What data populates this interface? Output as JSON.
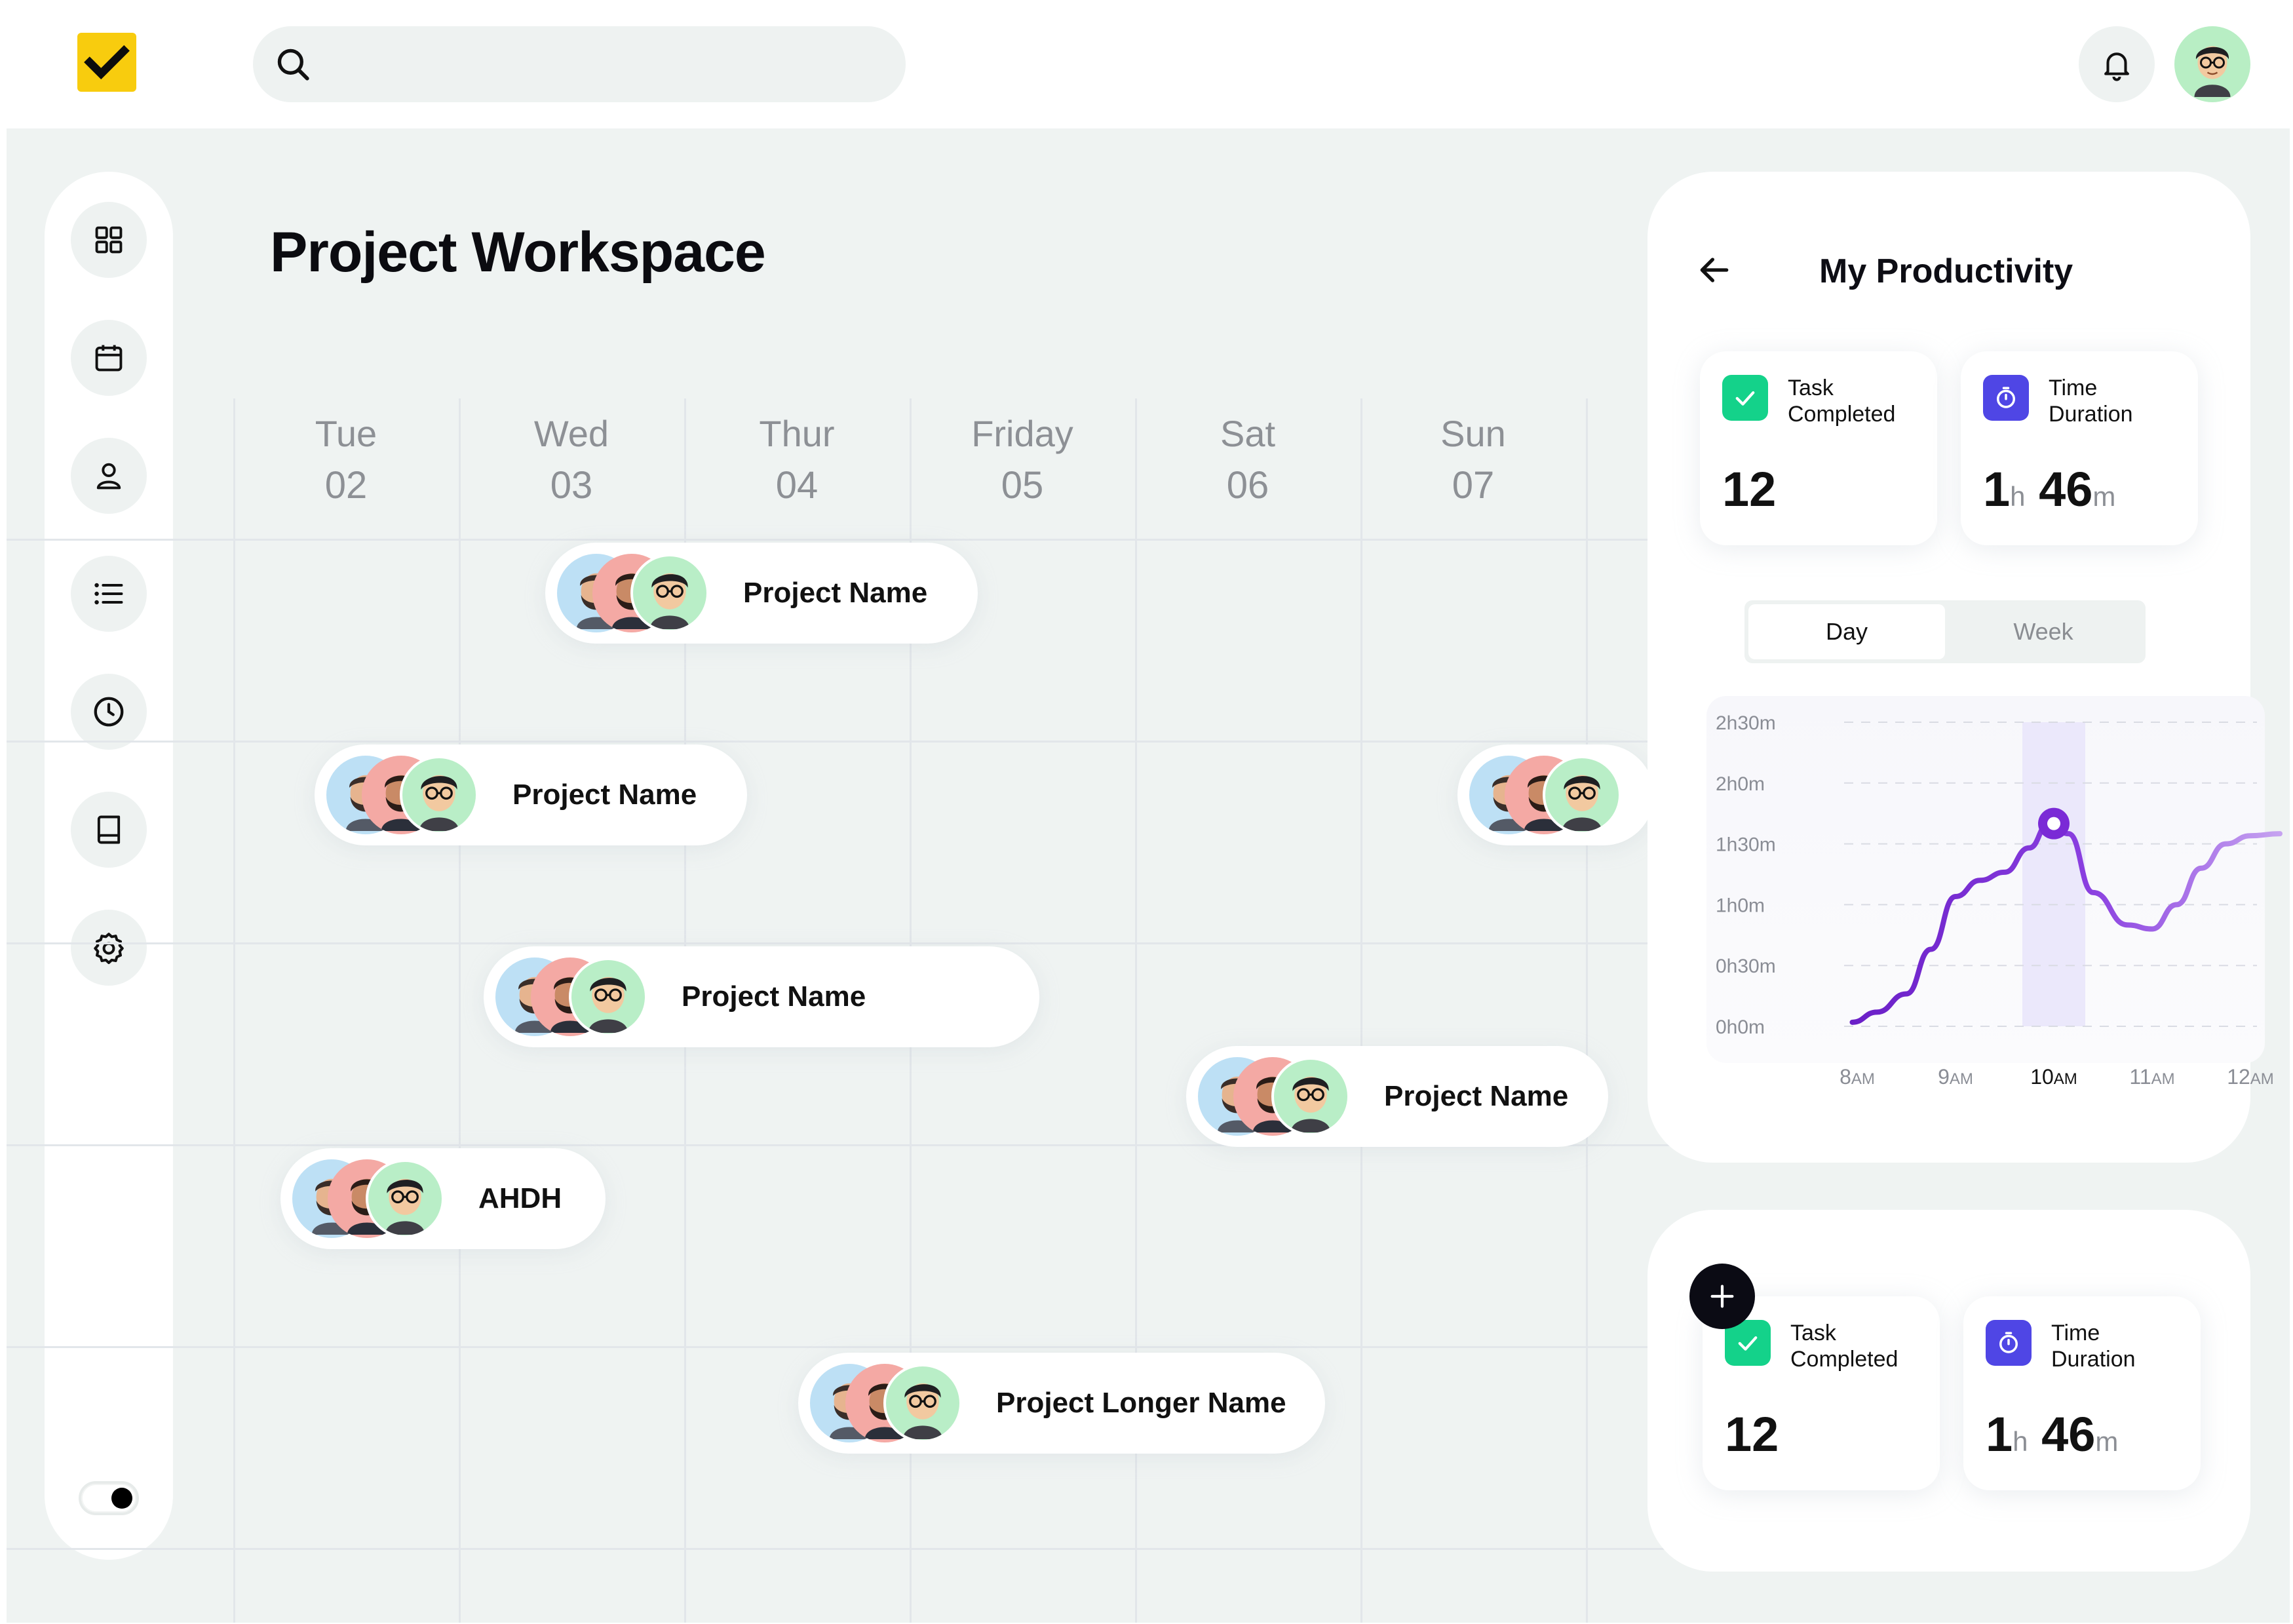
{
  "search": {
    "placeholder": "",
    "value": ""
  },
  "workspace": {
    "title": "Project Workspace"
  },
  "days": [
    {
      "name": "Tue",
      "date": "02"
    },
    {
      "name": "Wed",
      "date": "03"
    },
    {
      "name": "Thur",
      "date": "04"
    },
    {
      "name": "Friday",
      "date": "05"
    },
    {
      "name": "Sat",
      "date": "06"
    },
    {
      "name": "Sun",
      "date": "07"
    }
  ],
  "projects": [
    {
      "name": "Project Name"
    },
    {
      "name": "Project Name"
    },
    {
      "name": ""
    },
    {
      "name": "Project Name"
    },
    {
      "name": "Project Name"
    },
    {
      "name": "AHDH"
    },
    {
      "name": "Project Longer Name"
    }
  ],
  "sidebar": {
    "icons": [
      "dashboard-icon",
      "calendar-icon",
      "user-icon",
      "list-icon",
      "clock-icon",
      "book-icon",
      "settings-icon"
    ],
    "theme_toggle": "on"
  },
  "productivity": {
    "title": "My Productivity",
    "tabs": [
      {
        "label": "Day",
        "active": true
      },
      {
        "label": "Week",
        "active": false
      }
    ],
    "task_label": "Task Completed",
    "task_value": "12",
    "time_label": "Time Duration",
    "time_hours": "1",
    "time_hours_unit": "h",
    "time_minutes": "46",
    "time_minutes_unit": "m"
  },
  "summary": {
    "task_label": "Task Completed",
    "task_value": "12",
    "time_label": "Time Duration",
    "time_hours": "1",
    "time_hours_unit": "h",
    "time_minutes": "46",
    "time_minutes_unit": "m"
  },
  "colors": {
    "accent": "#7a2ad6",
    "brand": "#f8cc0e",
    "success": "#14d28a",
    "timer": "#4f46e5"
  },
  "chart_data": {
    "type": "line",
    "title": "",
    "xlabel": "",
    "ylabel": "",
    "x_ticks": [
      {
        "main": "8",
        "suffix": "AM"
      },
      {
        "main": "9",
        "suffix": "AM"
      },
      {
        "main": "10",
        "suffix": "AM"
      },
      {
        "main": "11",
        "suffix": "AM"
      },
      {
        "main": "12",
        "suffix": "AM"
      }
    ],
    "y_ticks": [
      "2h30m",
      "2h0m",
      "1h30m",
      "1h0m",
      "0h30m",
      "0h0m"
    ],
    "ylim": [
      0,
      150
    ],
    "x": [
      7.95,
      8.2,
      8.5,
      8.75,
      9.0,
      9.25,
      9.5,
      9.75,
      9.95,
      10.15,
      10.4,
      10.75,
      11.0,
      11.25,
      11.5,
      11.75,
      12.0,
      12.3
    ],
    "series": [
      {
        "values": [
          2,
          7,
          16,
          38,
          64,
          72,
          76,
          88,
          100,
          95,
          66,
          50,
          48,
          60,
          78,
          90,
          94,
          95
        ]
      }
    ],
    "highlight_x": 10,
    "highlight_value": 100,
    "grid": true,
    "legend": "none"
  }
}
